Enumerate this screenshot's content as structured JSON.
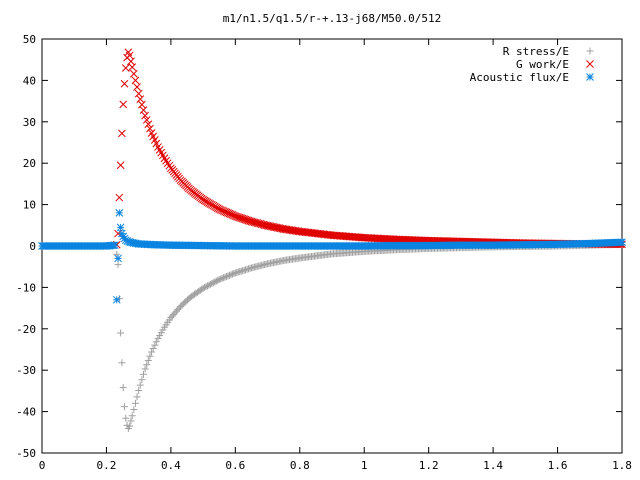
{
  "chart_data": {
    "type": "scatter",
    "title": "m1/n1.5/q1.5/r-+.13-j68/M50.0/512",
    "xlabel": "",
    "ylabel": "",
    "xlim": [
      0,
      1.8
    ],
    "ylim": [
      -50,
      50
    ],
    "x_ticks": [
      0,
      0.2,
      0.4,
      0.6,
      0.8,
      1,
      1.2,
      1.4,
      1.6,
      1.8
    ],
    "x_tick_labels": [
      "0",
      "0.2",
      "0.4",
      "0.6",
      "0.8",
      "1",
      "1.2",
      "1.4",
      "1.6",
      "1.8"
    ],
    "y_ticks": [
      -50,
      -40,
      -30,
      -20,
      -10,
      0,
      10,
      20,
      30,
      40,
      50
    ],
    "y_tick_labels": [
      "-50",
      "-40",
      "-30",
      "-20",
      "-10",
      "0",
      "10",
      "20",
      "30",
      "40",
      "50"
    ],
    "grid": false,
    "legend_position": "top-right",
    "series": [
      {
        "name": "R stress/E",
        "marker": "plus",
        "color": "#a0a0a0",
        "x": [
          0.232,
          0.236,
          0.24,
          0.244,
          0.248,
          0.252,
          0.256,
          0.26,
          0.264,
          0.268,
          0.272,
          0.28,
          0.29,
          0.3,
          0.32,
          0.34,
          0.36,
          0.38,
          0.4,
          0.43,
          0.46,
          0.5,
          0.55,
          0.6,
          0.65,
          0.7,
          0.75,
          0.8,
          0.9,
          1.0,
          1.1,
          1.2,
          1.3,
          1.4,
          1.5,
          1.6,
          1.7,
          1.8
        ],
        "y": [
          -2.0,
          -4.5,
          -12.7,
          -21.0,
          -28.2,
          -34.2,
          -38.8,
          -41.6,
          -43.3,
          -44.1,
          -43.5,
          -41.0,
          -38.0,
          -34.9,
          -29.7,
          -25.6,
          -22.3,
          -19.6,
          -17.3,
          -14.6,
          -12.4,
          -10.2,
          -8.1,
          -6.5,
          -5.3,
          -4.3,
          -3.5,
          -2.9,
          -1.9,
          -1.3,
          -0.9,
          -0.6,
          -0.4,
          -0.2,
          -0.1,
          0.0,
          0.2,
          0.4
        ]
      },
      {
        "name": "G work/E",
        "marker": "cross",
        "color": "#e00000",
        "x": [
          0.232,
          0.236,
          0.24,
          0.244,
          0.248,
          0.252,
          0.256,
          0.26,
          0.264,
          0.268,
          0.272,
          0.28,
          0.29,
          0.3,
          0.32,
          0.34,
          0.36,
          0.38,
          0.4,
          0.43,
          0.46,
          0.5,
          0.55,
          0.6,
          0.65,
          0.7,
          0.75,
          0.8,
          0.9,
          1.0,
          1.1,
          1.2,
          1.3,
          1.4,
          1.5,
          1.6,
          1.7,
          1.8
        ],
        "y": [
          0.3,
          3.0,
          11.7,
          19.5,
          27.2,
          34.2,
          39.2,
          43.0,
          45.5,
          46.8,
          46.0,
          43.2,
          40.0,
          36.8,
          31.5,
          27.3,
          23.9,
          21.2,
          18.8,
          15.9,
          13.6,
          11.2,
          8.9,
          7.2,
          5.9,
          4.9,
          4.1,
          3.5,
          2.6,
          2.0,
          1.6,
          1.3,
          1.1,
          0.9,
          0.7,
          0.6,
          0.5,
          0.4
        ]
      },
      {
        "name": "Acoustic flux/E",
        "marker": "star",
        "color": "#0a84e0",
        "x": [
          0.0,
          0.05,
          0.1,
          0.15,
          0.2,
          0.226,
          0.232,
          0.236,
          0.24,
          0.244,
          0.248,
          0.252,
          0.256,
          0.26,
          0.27,
          0.28,
          0.3,
          0.35,
          0.4,
          0.5,
          0.6,
          0.7,
          0.8,
          0.9,
          1.0,
          1.1,
          1.2,
          1.3,
          1.4,
          1.5,
          1.6,
          1.7,
          1.8
        ],
        "y": [
          0.0,
          0.0,
          0.0,
          0.0,
          0.0,
          0.2,
          -13.0,
          -3.0,
          8.0,
          4.5,
          3.0,
          2.3,
          1.8,
          1.4,
          1.0,
          0.8,
          0.5,
          0.3,
          0.2,
          0.1,
          0.0,
          0.0,
          0.0,
          0.0,
          0.0,
          0.1,
          0.1,
          0.2,
          0.2,
          0.3,
          0.4,
          0.6,
          0.9
        ]
      }
    ]
  }
}
